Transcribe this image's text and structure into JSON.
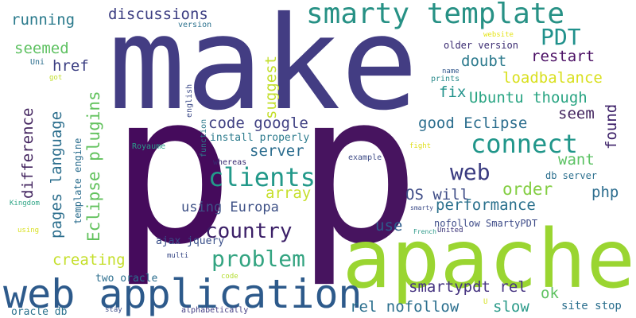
{
  "cloud": {
    "background": "#ffffff",
    "words": [
      {
        "text": "make",
        "color": "#433d83"
      },
      {
        "text": "p",
        "color": "#450b5c"
      },
      {
        "text": "p",
        "color": "#47145f"
      },
      {
        "text": "apache",
        "color": "#9ad531"
      },
      {
        "text": "web application",
        "color": "#2d5a8b"
      },
      {
        "text": "smarty template",
        "color": "#279185"
      },
      {
        "text": "PDT",
        "color": "#20918c"
      },
      {
        "text": "connect",
        "color": "#20968a"
      },
      {
        "text": "clients",
        "color": "#23998a"
      },
      {
        "text": "web",
        "color": "#3a3b80"
      },
      {
        "text": "problem",
        "color": "#33a481"
      },
      {
        "text": "country",
        "color": "#3b1f67"
      },
      {
        "text": "discussions",
        "color": "#3c3e82"
      },
      {
        "text": "running",
        "color": "#2a7a8c"
      },
      {
        "text": "seemed",
        "color": "#5ec161"
      },
      {
        "text": "href",
        "color": "#3b3e82"
      },
      {
        "text": "restart",
        "color": "#4b0f64"
      },
      {
        "text": "doubt",
        "color": "#2c7a8d"
      },
      {
        "text": "loadbalance",
        "color": "#d9e021"
      },
      {
        "text": "fix",
        "color": "#21928b"
      },
      {
        "text": "Ubuntu though",
        "color": "#28a482"
      },
      {
        "text": "seem",
        "color": "#43245f"
      },
      {
        "text": "good Eclipse",
        "color": "#2c6e8e"
      },
      {
        "text": "code google",
        "color": "#404183"
      },
      {
        "text": "server",
        "color": "#2c6d8e"
      },
      {
        "text": "want",
        "color": "#5bc263"
      },
      {
        "text": "order",
        "color": "#83ce42"
      },
      {
        "text": "php",
        "color": "#2c6d8e"
      },
      {
        "text": "array",
        "color": "#c6df2c"
      },
      {
        "text": "OS will",
        "color": "#3f4d87"
      },
      {
        "text": "performance",
        "color": "#2b718d"
      },
      {
        "text": "using Europa",
        "color": "#3e5186"
      },
      {
        "text": "use",
        "color": "#2b5b8c"
      },
      {
        "text": "ok",
        "color": "#5fc262"
      },
      {
        "text": "creating",
        "color": "#c5df2c"
      },
      {
        "text": "smartypdt rel",
        "color": "#463481"
      },
      {
        "text": "rel nofollow",
        "color": "#2b6f8e"
      },
      {
        "text": "slow",
        "color": "#2c9b8a"
      },
      {
        "text": "site stop",
        "color": "#2b6f8e"
      },
      {
        "text": "two oracle",
        "color": "#2c6e8e"
      },
      {
        "text": "oracle db",
        "color": "#2b728e"
      },
      {
        "text": "ajax jquery",
        "color": "#374d88"
      },
      {
        "text": "install properly",
        "color": "#2b7a8c"
      },
      {
        "text": "nofollow SmartyPDT",
        "color": "#3d4b88"
      },
      {
        "text": "db server",
        "color": "#2b6f8e"
      },
      {
        "text": "older version",
        "color": "#3a2b71"
      },
      {
        "text": "version",
        "color": "#2c728e"
      },
      {
        "text": "website",
        "color": "#e5e419"
      },
      {
        "text": "name",
        "color": "#31578c"
      },
      {
        "text": "prints",
        "color": "#2b8b8c"
      },
      {
        "text": "Uni",
        "color": "#2c6e8e"
      },
      {
        "text": "got",
        "color": "#c0df2d"
      },
      {
        "text": "Royaume",
        "color": "#2b9b89"
      },
      {
        "text": "whereas",
        "color": "#372a70"
      },
      {
        "text": "example",
        "color": "#3f4d87"
      },
      {
        "text": "fight",
        "color": "#e0e020"
      },
      {
        "text": "Kingdom",
        "color": "#2fa586"
      },
      {
        "text": "using",
        "color": "#d9e022"
      },
      {
        "text": "smarty",
        "color": "#3d4d89"
      },
      {
        "text": "United",
        "color": "#352e74"
      },
      {
        "text": "French",
        "color": "#2d9a8a"
      },
      {
        "text": "multi",
        "color": "#3d4d89"
      },
      {
        "text": "code",
        "color": "#b3dd30"
      },
      {
        "text": "stay",
        "color": "#3c4d89"
      },
      {
        "text": "alphabetically",
        "color": "#433d83"
      },
      {
        "text": "U",
        "color": "#d5e022"
      },
      {
        "text": "difference",
        "color": "#43245f"
      },
      {
        "text": "pages language",
        "color": "#2b6e8d"
      },
      {
        "text": "Eclipse plugins",
        "color": "#62c25d"
      },
      {
        "text": "suggest",
        "color": "#c3df2c"
      },
      {
        "text": "template engine",
        "color": "#2c6e8e"
      },
      {
        "text": "english",
        "color": "#3e4c89"
      },
      {
        "text": "function",
        "color": "#2d7b8c"
      },
      {
        "text": "found",
        "color": "#3b1f67"
      }
    ]
  }
}
